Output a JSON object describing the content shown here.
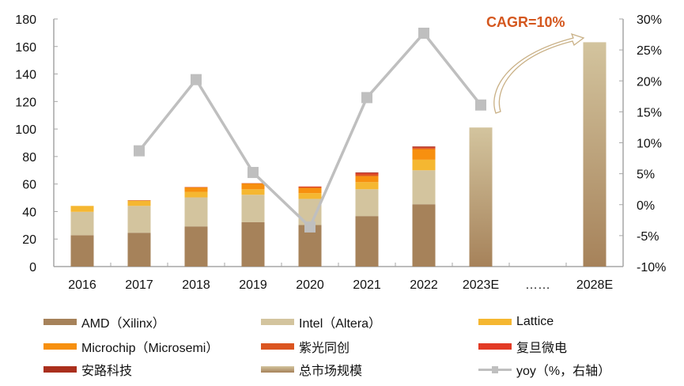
{
  "chart_data": {
    "type": "bar",
    "stacked": true,
    "title": "",
    "annotation": "CAGR=10%",
    "categories": [
      "2016",
      "2017",
      "2018",
      "2019",
      "2020",
      "2021",
      "2022",
      "2023E",
      "……",
      "2028E"
    ],
    "left_axis": {
      "ylim": [
        0,
        180
      ],
      "ticks": [
        "0",
        "20",
        "40",
        "60",
        "80",
        "100",
        "120",
        "140",
        "160",
        "180"
      ],
      "tick_values": [
        0,
        20,
        40,
        60,
        80,
        100,
        120,
        140,
        160,
        180
      ]
    },
    "right_axis": {
      "ylim": [
        -10,
        30
      ],
      "ticks": [
        "-10%",
        "-5%",
        "0%",
        "5%",
        "10%",
        "15%",
        "20%",
        "25%",
        "30%"
      ],
      "tick_values": [
        -10,
        -5,
        0,
        5,
        10,
        15,
        20,
        25,
        30
      ]
    },
    "series": [
      {
        "name": "AMD（Xilinx）",
        "color": "#A6825A",
        "values": [
          22.8,
          24.6,
          29.2,
          32.2,
          30.3,
          36.7,
          45.3,
          null,
          null,
          null
        ]
      },
      {
        "name": "Intel（Altera）",
        "color": "#D3C49E",
        "values": [
          17.0,
          19.5,
          21.1,
          20.0,
          18.9,
          19.5,
          24.7,
          null,
          null,
          null
        ]
      },
      {
        "name": "Lattice",
        "color": "#F5B731",
        "values": [
          4.3,
          3.9,
          4.0,
          4.0,
          4.2,
          5.2,
          7.7,
          null,
          null,
          null
        ]
      },
      {
        "name": "Microchip（Microsemi）",
        "color": "#F7900F",
        "values": [
          0,
          0,
          3.3,
          4.2,
          3.8,
          4.4,
          7.7,
          null,
          null,
          null
        ]
      },
      {
        "name": "紫光同创",
        "color": "#DB5520",
        "values": [
          0,
          0.2,
          0.2,
          0.2,
          0.6,
          1.2,
          0.8,
          null,
          null,
          null
        ]
      },
      {
        "name": "复旦微电",
        "color": "#E23A25",
        "values": [
          0,
          0,
          0,
          0,
          0.4,
          0.8,
          0.4,
          null,
          null,
          null
        ]
      },
      {
        "name": "安路科技",
        "color": "#AA2F1D",
        "values": [
          0,
          0,
          0,
          0,
          0,
          0.6,
          0.7,
          null,
          null,
          null
        ]
      },
      {
        "name": "总市场规模",
        "color": "#C4AA7E",
        "values": [
          null,
          null,
          null,
          null,
          null,
          null,
          null,
          101.1,
          null,
          163.1
        ]
      },
      {
        "name": "yoy（%，右轴）",
        "type": "line",
        "axis": "right",
        "color": "#BFBFBF",
        "values": [
          null,
          8.7,
          20.2,
          5.2,
          -3.6,
          17.3,
          27.7,
          16.1,
          null,
          null
        ]
      }
    ],
    "legend_position": "bottom",
    "grid": false
  },
  "legend": {
    "items": [
      {
        "label": "AMD（Xilinx）",
        "color": "#A6825A",
        "kind": "bar"
      },
      {
        "label": "Intel（Altera）",
        "color": "#D3C49E",
        "kind": "bar"
      },
      {
        "label": "Lattice",
        "color": "#F5B731",
        "kind": "bar"
      },
      {
        "label": "Microchip（Microsemi）",
        "color": "#F7900F",
        "kind": "bar"
      },
      {
        "label": "紫光同创",
        "color": "#DB5520",
        "kind": "bar"
      },
      {
        "label": "复旦微电",
        "color": "#E23A25",
        "kind": "bar"
      },
      {
        "label": "安路科技",
        "color": "#AA2F1D",
        "kind": "bar"
      },
      {
        "label": "总市场规模",
        "color": "#C4AA7E",
        "kind": "gradient"
      },
      {
        "label": "yoy（%，右轴）",
        "color": "#BFBFBF",
        "kind": "line"
      }
    ]
  }
}
